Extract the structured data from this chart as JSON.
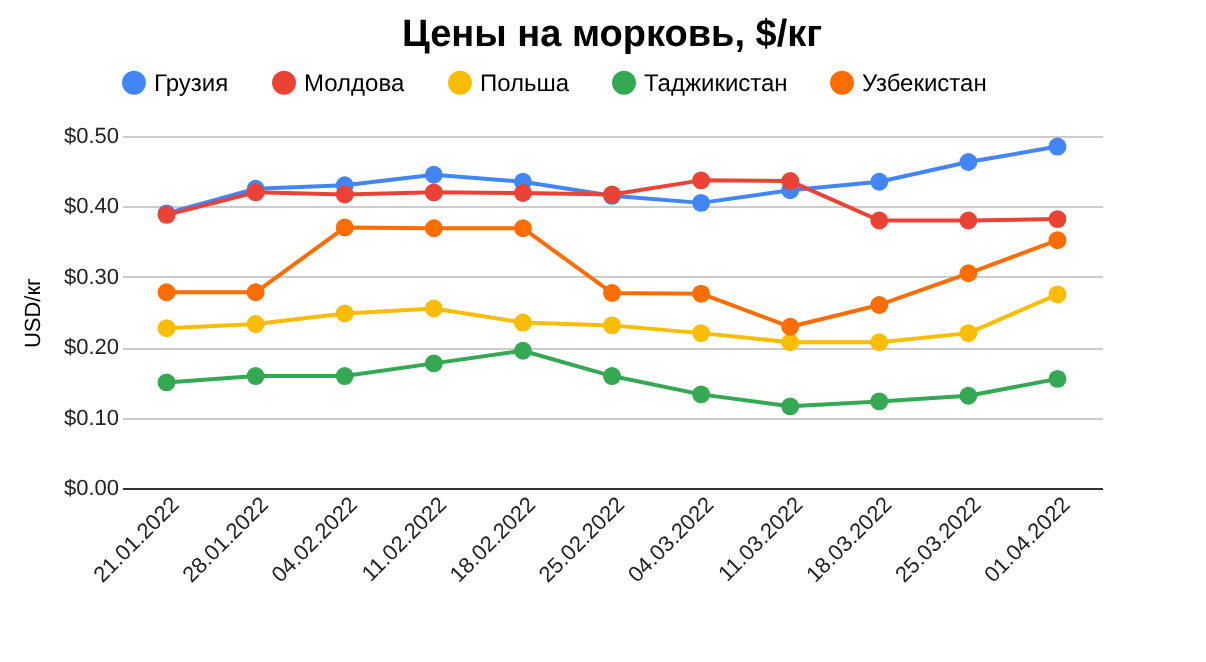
{
  "chart_data": {
    "type": "line",
    "title": "Цены на морковь, $/кг",
    "ylabel": "USD/кг",
    "categories": [
      "21.01.2022",
      "28.01.2022",
      "04.02.2022",
      "11.02.2022",
      "18.02.2022",
      "25.02.2022",
      "04.03.2022",
      "11.03.2022",
      "18.03.2022",
      "25.03.2022",
      "01.04.2022"
    ],
    "series": [
      {
        "name": "Грузия",
        "color": "#4285f4",
        "values": [
          0.39,
          0.425,
          0.43,
          0.445,
          0.435,
          0.415,
          0.405,
          0.423,
          0.435,
          0.463,
          0.485
        ]
      },
      {
        "name": "Молдова",
        "color": "#ea4335",
        "values": [
          0.388,
          0.42,
          0.417,
          0.42,
          0.419,
          0.417,
          0.437,
          0.436,
          0.38,
          0.38,
          0.382
        ]
      },
      {
        "name": "Польша",
        "color": "#fbbc04",
        "values": [
          0.227,
          0.233,
          0.248,
          0.255,
          0.235,
          0.231,
          0.22,
          0.207,
          0.207,
          0.22,
          0.275
        ]
      },
      {
        "name": "Таджикистан",
        "color": "#34a853",
        "values": [
          0.15,
          0.159,
          0.159,
          0.177,
          0.195,
          0.159,
          0.133,
          0.116,
          0.123,
          0.131,
          0.155
        ]
      },
      {
        "name": "Узбекистан",
        "color": "#ff6d01",
        "values": [
          0.278,
          0.278,
          0.37,
          0.369,
          0.369,
          0.277,
          0.276,
          0.229,
          0.26,
          0.305,
          0.352
        ]
      }
    ],
    "ylim": [
      0,
      0.5
    ],
    "yticks": [
      {
        "value": 0,
        "label": "$0.00"
      },
      {
        "value": 0.1,
        "label": "$0.10"
      },
      {
        "value": 0.2,
        "label": "$0.20"
      },
      {
        "value": 0.3,
        "label": "$0.30"
      },
      {
        "value": 0.4,
        "label": "$0.40"
      },
      {
        "value": 0.5,
        "label": "$0.50"
      }
    ],
    "grid": "y",
    "legend": "top",
    "marker": "circle",
    "line_style": "solid"
  }
}
